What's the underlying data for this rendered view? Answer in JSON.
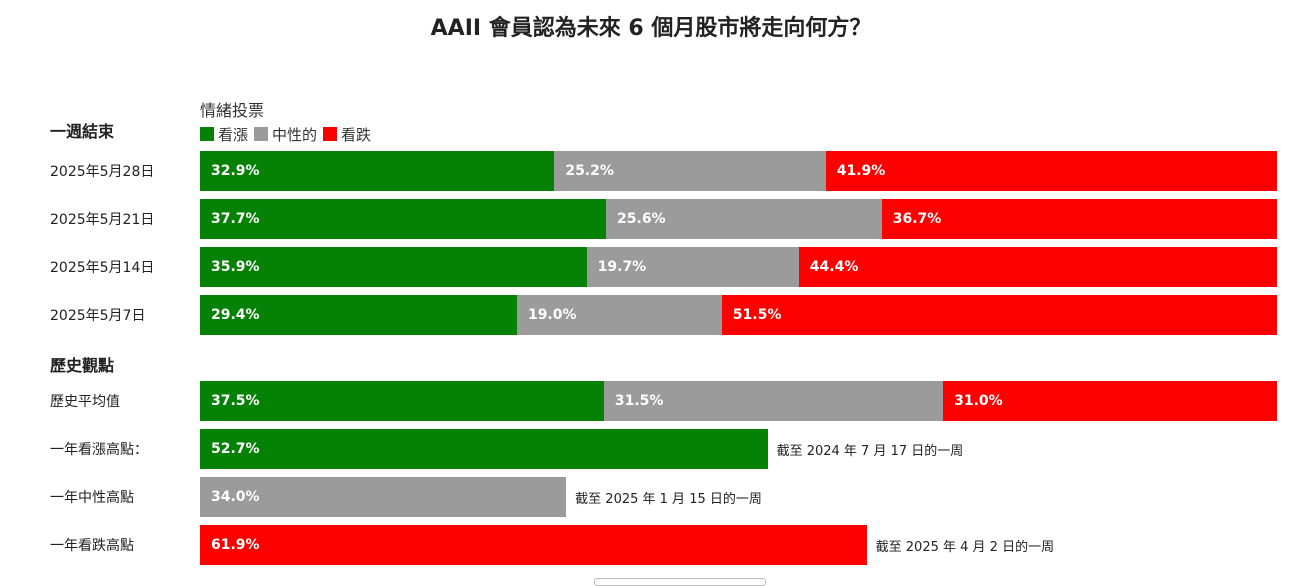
{
  "chart_data": {
    "type": "bar",
    "orientation": "horizontal",
    "stacked": true,
    "title": "AAII 會員認為未來 6 個月股市將走向何方？",
    "legend_title": "情緒投票",
    "legend_placement": "top-left",
    "xlim": [
      0,
      100
    ],
    "grid": false,
    "series_colors": {
      "bullish": "#058205",
      "neutral": "#9b9b9b",
      "bearish": "#fd0000"
    },
    "legend": [
      {
        "key": "bullish",
        "label": "看漲"
      },
      {
        "key": "neutral",
        "label": "中性的"
      },
      {
        "key": "bearish",
        "label": "看跌"
      }
    ],
    "sections": [
      {
        "title": "一週結束",
        "rows": [
          {
            "label": "2025年5月28日",
            "values": [
              32.9,
              25.2,
              41.9
            ],
            "value_labels": [
              "32.9%",
              "25.2%",
              "41.9%"
            ]
          },
          {
            "label": "2025年5月21日",
            "values": [
              37.7,
              25.6,
              36.7
            ],
            "value_labels": [
              "37.7%",
              "25.6%",
              "36.7%"
            ]
          },
          {
            "label": "2025年5月14日",
            "values": [
              35.9,
              19.7,
              44.4
            ],
            "value_labels": [
              "35.9%",
              "19.7%",
              "44.4%"
            ]
          },
          {
            "label": "2025年5月7日",
            "values": [
              29.4,
              19.0,
              51.5
            ],
            "value_labels": [
              "29.4%",
              "19.0%",
              "51.5%"
            ]
          }
        ]
      },
      {
        "title": "歷史觀點",
        "rows": [
          {
            "label": "歷史平均值",
            "values": [
              37.5,
              31.5,
              31.0
            ],
            "value_labels": [
              "37.5%",
              "31.5%",
              "31.0%"
            ]
          }
        ],
        "highs": [
          {
            "label": "一年看漲高點：",
            "series": "bullish",
            "value": 52.7,
            "value_label": "52.7%",
            "note": "截至 2024 年 7 月 17 日的一周"
          },
          {
            "label": "一年中性高點",
            "series": "neutral",
            "value": 34.0,
            "value_label": "34.0%",
            "note": "截至 2025 年 1 月 15 日的一周"
          },
          {
            "label": "一年看跌高點",
            "series": "bearish",
            "value": 61.9,
            "value_label": "61.9%",
            "note": "截至 2025 年 4 月 2 日的一周"
          }
        ]
      }
    ]
  }
}
